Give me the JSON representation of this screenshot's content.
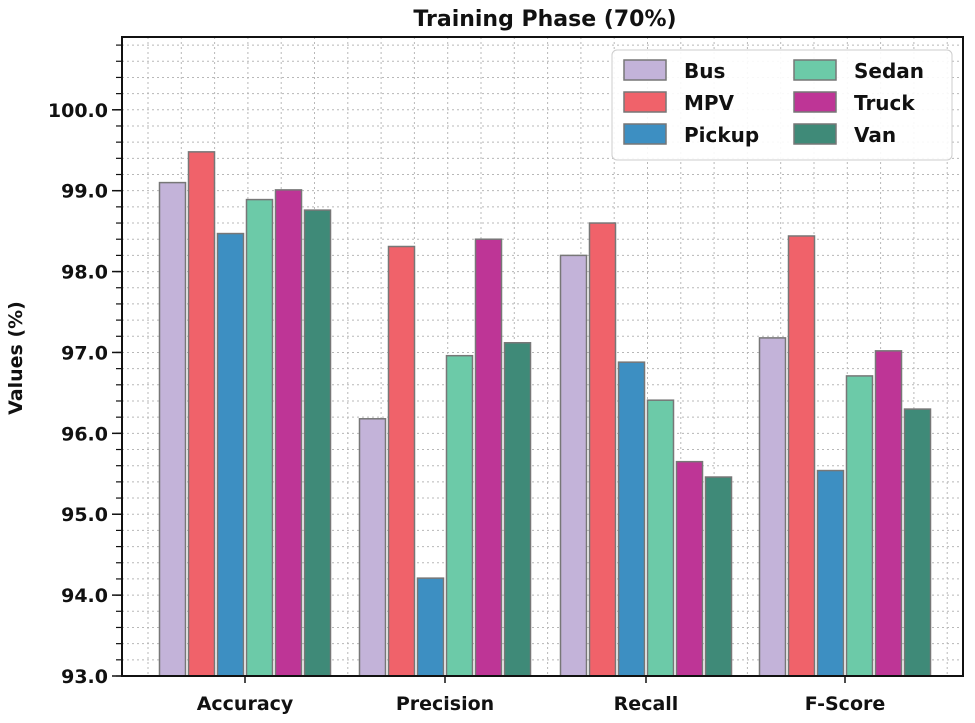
{
  "chart_data": {
    "type": "bar",
    "title": "Training Phase (70%)",
    "xlabel": "",
    "ylabel": "Values (%)",
    "ylim": [
      93.0,
      100.9
    ],
    "yticks": [
      "93.0",
      "94.0",
      "95.0",
      "96.0",
      "97.0",
      "98.0",
      "99.0",
      "100.0"
    ],
    "grid": true,
    "legend_position": "top-right",
    "categories": [
      "Accuracy",
      "Precision",
      "Recall",
      "F-Score"
    ],
    "series": [
      {
        "name": "Bus",
        "color": "#c3b3d9",
        "values": [
          99.1,
          96.18,
          98.2,
          97.18
        ]
      },
      {
        "name": "MPV",
        "color": "#f0626a",
        "values": [
          99.48,
          98.31,
          98.6,
          98.44
        ]
      },
      {
        "name": "Pickup",
        "color": "#3d8fc2",
        "values": [
          98.47,
          94.21,
          96.88,
          95.54
        ]
      },
      {
        "name": "Sedan",
        "color": "#6ccaa8",
        "values": [
          98.89,
          96.96,
          96.41,
          96.71
        ]
      },
      {
        "name": "Truck",
        "color": "#be3596",
        "values": [
          99.01,
          98.4,
          95.65,
          97.02
        ]
      },
      {
        "name": "Van",
        "color": "#3f8a78",
        "values": [
          98.76,
          97.12,
          95.46,
          96.3
        ]
      }
    ]
  }
}
